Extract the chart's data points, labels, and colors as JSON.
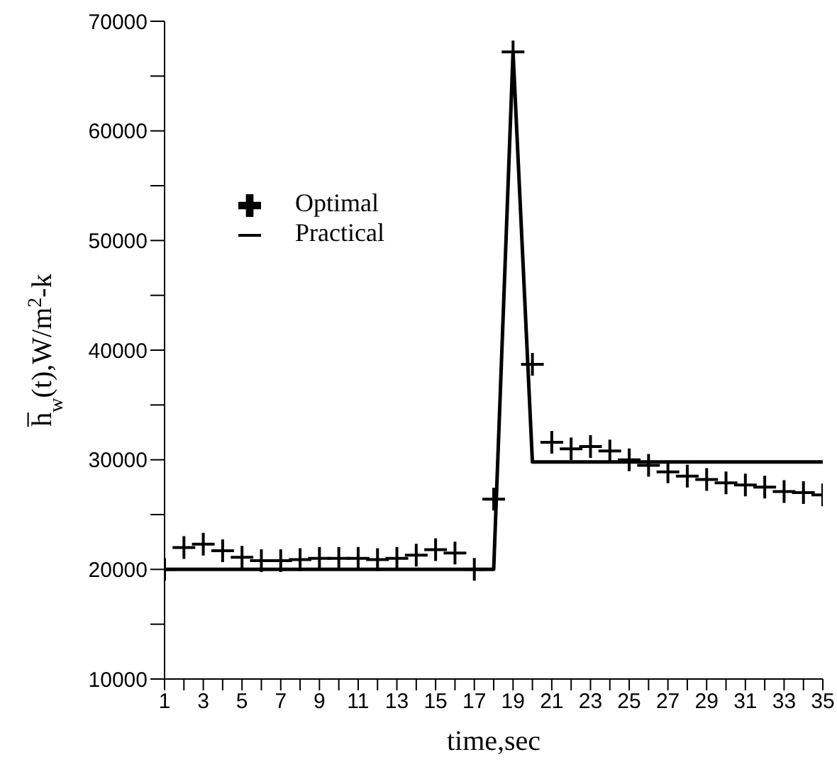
{
  "chart_data": {
    "type": "line",
    "xlabel": "time,sec",
    "ylabel": "h̅$_{w}$(t),W/m$^{2}$-k",
    "x": [
      1,
      2,
      3,
      4,
      5,
      6,
      7,
      8,
      9,
      10,
      11,
      12,
      13,
      14,
      15,
      16,
      17,
      18,
      19,
      20,
      21,
      22,
      23,
      24,
      25,
      26,
      27,
      28,
      29,
      30,
      31,
      32,
      33,
      34,
      35
    ],
    "series": [
      {
        "name": "Optimal",
        "type": "scatter",
        "marker": "cross",
        "color": "#000000",
        "values": [
          20000,
          22000,
          22300,
          21700,
          21100,
          20800,
          20800,
          20900,
          21000,
          21000,
          21000,
          20900,
          21000,
          21300,
          21800,
          21500,
          20000,
          26400,
          67200,
          38700,
          31600,
          31000,
          31200,
          30800,
          30000,
          29500,
          28900,
          28500,
          28200,
          27900,
          27700,
          27500,
          27100,
          27000,
          26800
        ]
      },
      {
        "name": "Practical",
        "type": "line",
        "marker": "none",
        "line_style": "solid",
        "color": "#000000",
        "x": [
          1,
          18,
          19,
          20,
          35
        ],
        "values": [
          20000,
          20000,
          67200,
          29800,
          29800
        ]
      }
    ],
    "xlim": [
      1,
      35
    ],
    "xticks": [
      1,
      {
        "value": 2,
        "label": null
      },
      3,
      {
        "value": 4,
        "label": null
      },
      5,
      {
        "value": 6,
        "label": null
      },
      7,
      {
        "value": 8,
        "label": null
      },
      9,
      {
        "value": 10,
        "label": null
      },
      11,
      {
        "value": 12,
        "label": null
      },
      13,
      {
        "value": 14,
        "label": null
      },
      15,
      {
        "value": 16,
        "label": null
      },
      17,
      {
        "value": 18,
        "label": null
      },
      19,
      {
        "value": 20,
        "label": null
      },
      21,
      {
        "value": 22,
        "label": null
      },
      23,
      {
        "value": 24,
        "label": null
      },
      25,
      {
        "value": 26,
        "label": null
      },
      27,
      {
        "value": 28,
        "label": null
      },
      29,
      {
        "value": 30,
        "label": null
      },
      31,
      {
        "value": 32,
        "label": null
      },
      33,
      {
        "value": 34,
        "label": null
      },
      35
    ],
    "ylim": [
      10000,
      70000
    ],
    "yticks": [
      10000,
      {
        "value": 15000,
        "label": null
      },
      20000,
      {
        "value": 25000,
        "label": null
      },
      30000,
      {
        "value": 35000,
        "label": null
      },
      40000,
      {
        "value": 45000,
        "label": null
      },
      50000,
      {
        "value": 55000,
        "label": null
      },
      60000,
      {
        "value": 65000,
        "label": null
      },
      70000
    ],
    "grid": false,
    "legend": "top left"
  }
}
